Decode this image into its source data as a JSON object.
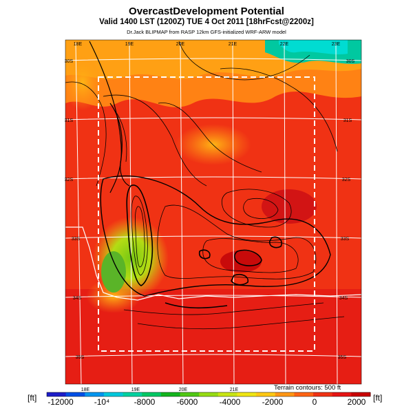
{
  "header": {
    "title": "OvercastDevelopment Potential",
    "valid_line": "Valid 1400 LST (1200Z) TUE 4 Oct 2011 [18hrFcst@2200z]",
    "source_line": "Dr.Jack BLIPMAP from RASP 12km GFS-initialized WRF-ARW model"
  },
  "map": {
    "top_lon_labels": [
      "18E",
      "19E",
      "20E",
      "21E",
      "22E",
      "23E"
    ],
    "bottom_lon_labels": [
      "18E",
      "19E",
      "20E",
      "21E"
    ],
    "left_lat_labels": [
      "30S",
      "31S",
      "32S",
      "33S",
      "34S",
      "35S"
    ],
    "right_lat_labels": [
      "30S",
      "31S",
      "32S",
      "33S",
      "34S",
      "35S"
    ],
    "terrain_note": "Terrain contours: 500 ft"
  },
  "colorbar": {
    "unit_left": "[ft]",
    "unit_right": "[ft]",
    "tick_labels": [
      "-12000",
      "-10⁴",
      "-8000",
      "-6000",
      "-4000",
      "-2000",
      "0",
      "2000"
    ],
    "colors": [
      "#1e1ec8",
      "#0050e6",
      "#0096f0",
      "#00c8dc",
      "#00d2a0",
      "#00c864",
      "#14b41e",
      "#50c814",
      "#96dc14",
      "#c8e614",
      "#f0e614",
      "#ffc814",
      "#ff9614",
      "#ff6414",
      "#f03214",
      "#e61414",
      "#c80000"
    ]
  }
}
